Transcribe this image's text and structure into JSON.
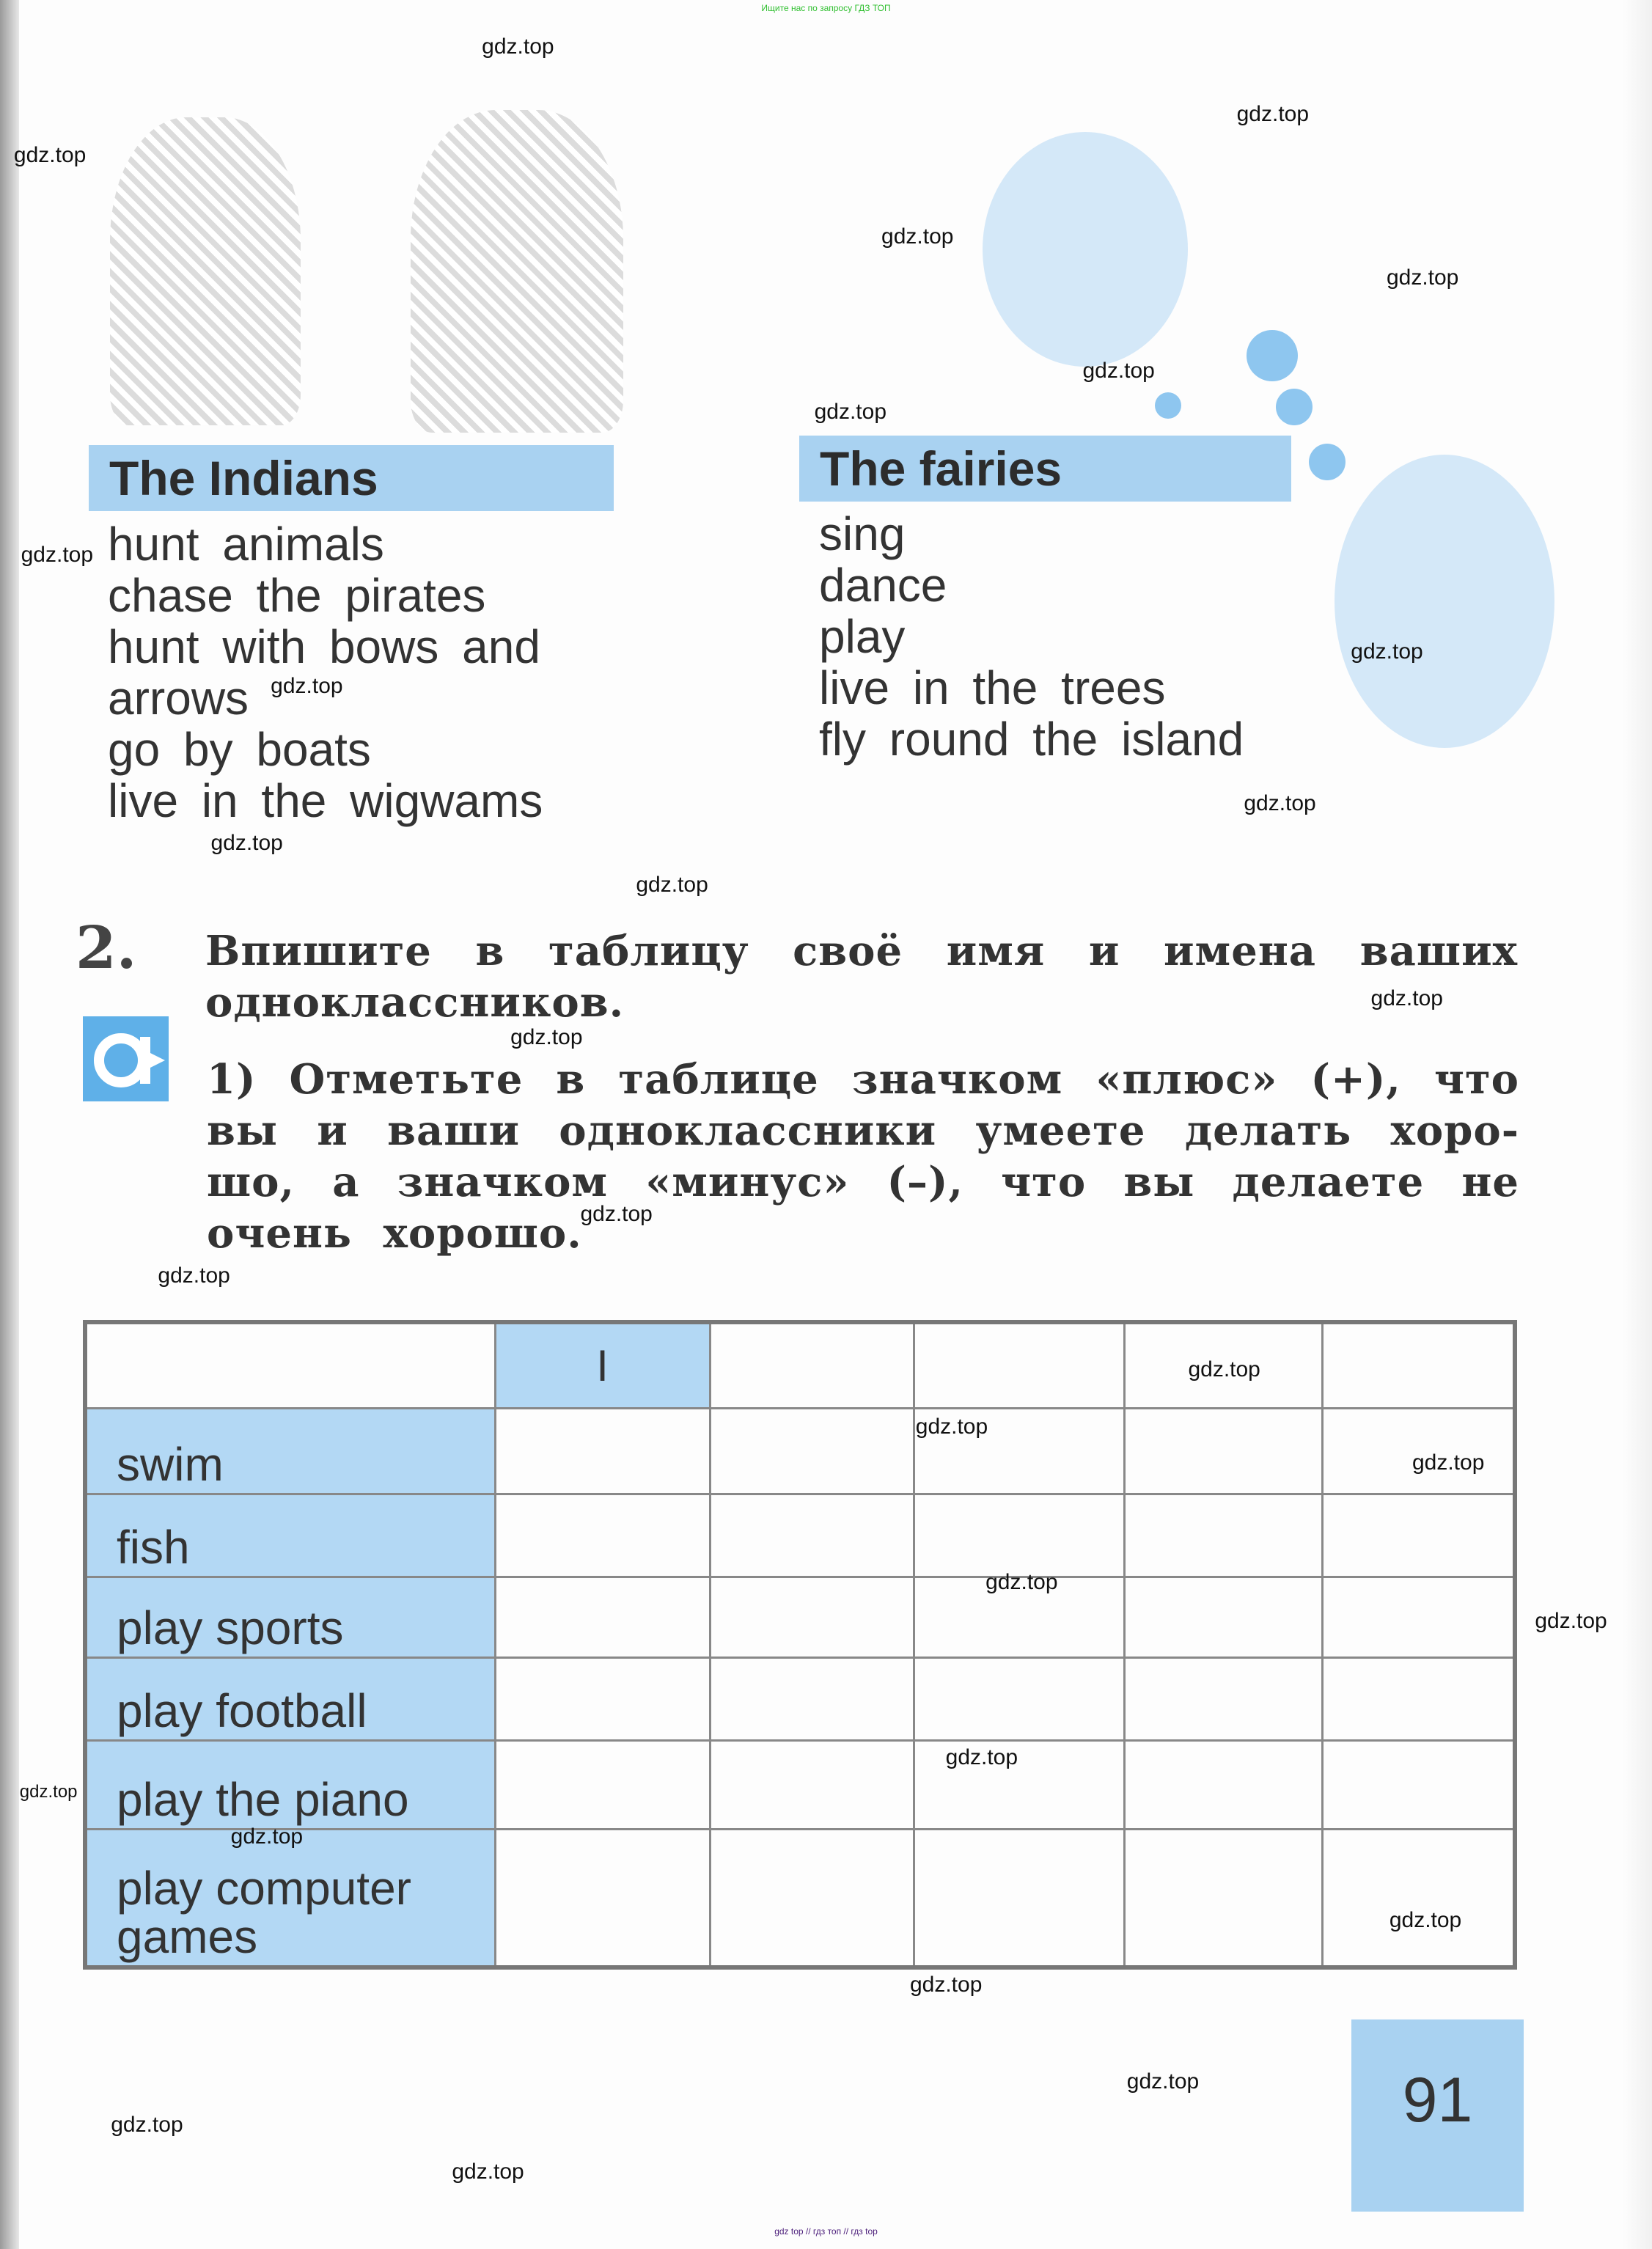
{
  "top_note": "Ищите нас по запросу ГДЗ ТОП",
  "bottom_note": "gdz top  //  гдз топ  //  гдз top",
  "indians": {
    "title": "The Indians",
    "items": [
      "hunt animals",
      "chase the pirates",
      "hunt with bows and",
      "arrows",
      "go by boats",
      "live in the wigwams"
    ]
  },
  "fairies": {
    "title": "The fairies",
    "items": [
      "sing",
      "dance",
      "play",
      "live in the trees",
      "fly round the island"
    ]
  },
  "exercise": {
    "number": "2.",
    "instruction_lines": [
      "Впишите в таблицу своё имя и имена ваших",
      "одноклассников."
    ],
    "icon": "letter-a-icon",
    "task_lines": [
      "1) Отметьте в таблице значком «плюс» (+), что",
      "вы и ваши одноклассники умеете делать хоро-",
      "шо, а значком «минус» (–), что вы делаете не",
      "очень хорошо."
    ]
  },
  "table": {
    "header": [
      "",
      "I",
      "",
      "",
      "",
      ""
    ],
    "rows": [
      {
        "label": "swim"
      },
      {
        "label": "fish"
      },
      {
        "label": "play sports"
      },
      {
        "label": "play football"
      },
      {
        "label": "play the piano"
      },
      {
        "label": "play computer games"
      }
    ]
  },
  "page_number": "91",
  "watermarks": [
    "gdz.top",
    "gdz.top",
    "gdz.top",
    "gdz.top",
    "gdz.top",
    "gdz.top",
    "gdz.top",
    "gdz.top",
    "gdz.top",
    "gdz.top",
    "gdz.top",
    "gdz.top",
    "gdz.top",
    "gdz.top",
    "gdz.top",
    "gdz.top",
    "gdz.top",
    "gdz.top",
    "gdz.top",
    "gdz.top",
    "gdz.top",
    "gdz.top",
    "gdz.top",
    "gdz.top",
    "gdz.top",
    "gdz.top",
    "gdz.top",
    "gdz.top",
    "gdz.top",
    "gdz.top"
  ],
  "colors": {
    "accent_blue": "#a9d2f1",
    "icon_blue": "#5fb0e8"
  }
}
